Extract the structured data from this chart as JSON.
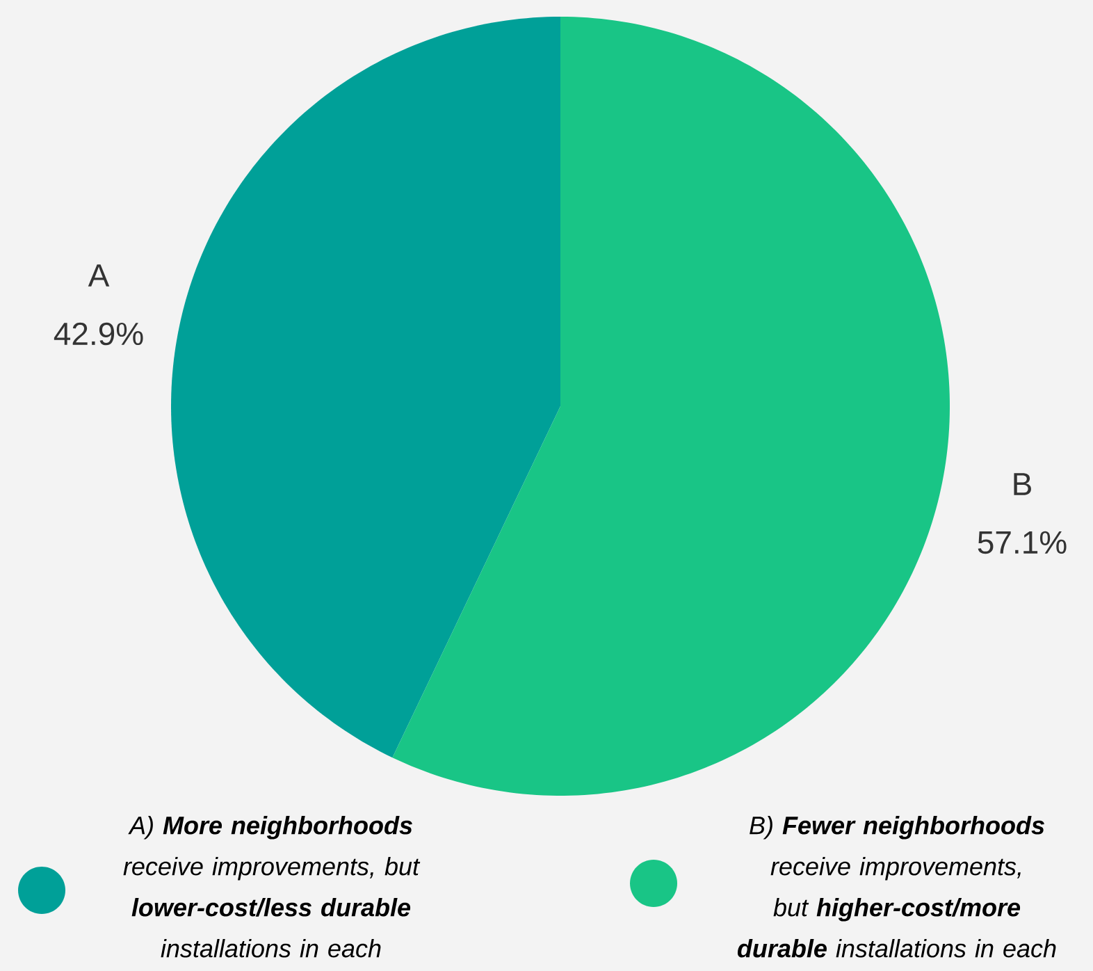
{
  "chart_data": {
    "type": "pie",
    "categories": [
      "A",
      "B"
    ],
    "values": [
      42.9,
      57.1
    ],
    "value_labels": [
      "42.9%",
      "57.1%"
    ],
    "colors": [
      "#00a098",
      "#19c586"
    ],
    "annotations": [
      "A) **More neighborhoods** receive improvements, but **lower-cost/less durable** installations in each",
      "B) **Fewer neighborhoods** receive improvements, but **higher-cost/more durable** installations in each"
    ]
  }
}
